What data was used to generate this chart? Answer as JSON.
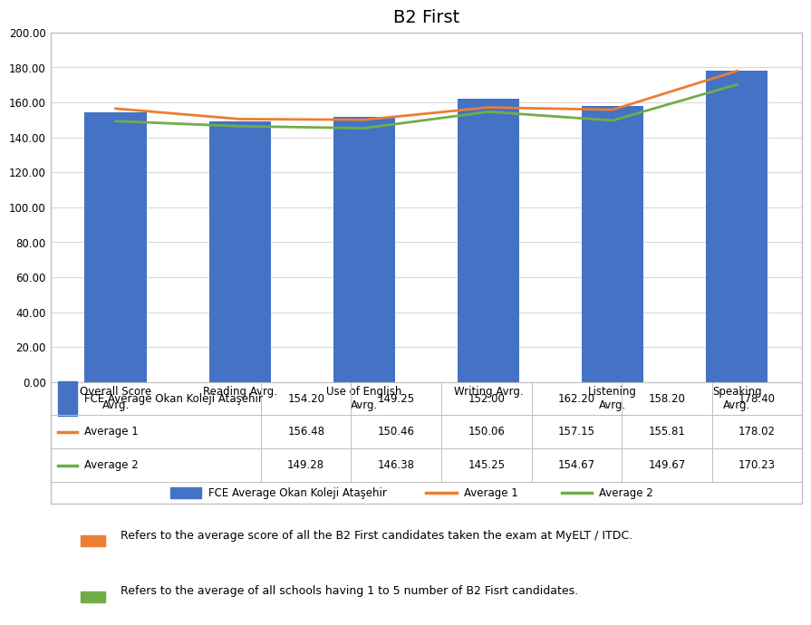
{
  "title": "B2 First",
  "categories": [
    "Overall Score\nAvrg.",
    "Reading Avrg.",
    "Use of English\nAvrg.",
    "Writing Avrg.",
    "Listening\nAvrg.",
    "Speaking\nAvrg."
  ],
  "bar_values": [
    154.2,
    149.25,
    152.0,
    162.2,
    158.2,
    178.4
  ],
  "line1_values": [
    156.48,
    150.46,
    150.06,
    157.15,
    155.81,
    178.02
  ],
  "line2_values": [
    149.28,
    146.38,
    145.25,
    154.67,
    149.67,
    170.23
  ],
  "bar_color": "#4472C4",
  "line1_color": "#ED7D31",
  "line2_color": "#70AD47",
  "ylim": [
    0,
    200
  ],
  "yticks": [
    0,
    20,
    40,
    60,
    80,
    100,
    120,
    140,
    160,
    180,
    200
  ],
  "row_labels": [
    "FCE Average Okan Koleji Ataşehir",
    "Average 1",
    "Average 2"
  ],
  "legend_bar_label": "FCE Average Okan Koleji Ataşehir",
  "legend_line1_label": "Average 1",
  "legend_line2_label": "Average 2",
  "note1": "Refers to the average score of all the B2 First candidates taken the exam at MyELT / ITDC.",
  "note2": "Refers to the average of all schools having 1 to 5 number of B2 Fisrt candidates.",
  "table_data": [
    [
      "154.20",
      "149.25",
      "152.00",
      "162.20",
      "158.20",
      "178.40"
    ],
    [
      "156.48",
      "150.46",
      "150.06",
      "157.15",
      "155.81",
      "178.02"
    ],
    [
      "149.28",
      "146.38",
      "145.25",
      "154.67",
      "149.67",
      "170.23"
    ]
  ],
  "bg_color": "#FFFFFF",
  "chart_bg": "#FFFFFF",
  "border_color": "#C0C0C0",
  "title_fontsize": 14,
  "axis_fontsize": 8.5,
  "table_fontsize": 8.5,
  "note_fontsize": 9
}
